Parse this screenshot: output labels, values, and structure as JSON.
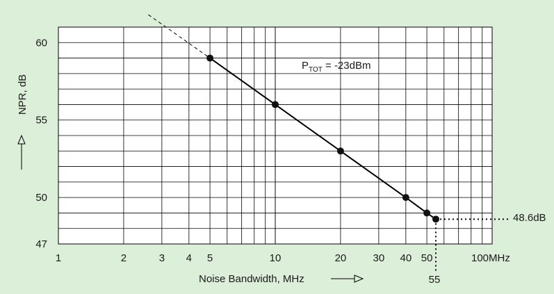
{
  "colors": {
    "background": "#dcefd8",
    "plot_area": "#ffffff",
    "grid": "#000000",
    "line": "#000000"
  },
  "chart_data": {
    "type": "line",
    "xscale": "log",
    "xlim": [
      1,
      100
    ],
    "ylim": [
      47,
      61
    ],
    "grid": true,
    "xlabel": "Noise Bandwidth, MHz",
    "ylabel": "NPR, dB",
    "x_ticks": [
      {
        "value": 1,
        "label": "1"
      },
      {
        "value": 2,
        "label": "2"
      },
      {
        "value": 3,
        "label": "3"
      },
      {
        "value": 4,
        "label": "4"
      },
      {
        "value": 5,
        "label": "5"
      },
      {
        "value": 10,
        "label": "10"
      },
      {
        "value": 20,
        "label": "20"
      },
      {
        "value": 30,
        "label": "30"
      },
      {
        "value": 40,
        "label": "40"
      },
      {
        "value": 50,
        "label": "50"
      },
      {
        "value": 100,
        "label": "100MHz"
      }
    ],
    "y_ticks": [
      {
        "value": 47,
        "label": "47"
      },
      {
        "value": 50,
        "label": "50"
      },
      {
        "value": 55,
        "label": "55"
      },
      {
        "value": 60,
        "label": "60"
      }
    ],
    "series": [
      {
        "x": [
          5,
          10,
          20,
          40,
          50,
          55
        ],
        "y": [
          59.0,
          56.0,
          53.0,
          50.0,
          49.0,
          48.6
        ]
      }
    ],
    "extrapolation": {
      "x": [
        2.6,
        5
      ],
      "y": [
        61.8,
        59.0
      ]
    },
    "annotations": {
      "ptot_main": "P",
      "ptot_sub": "TOT",
      "ptot_rest": " = -23dBm",
      "marker_x_label": "55",
      "marker_y_label": "48.6dB"
    }
  }
}
